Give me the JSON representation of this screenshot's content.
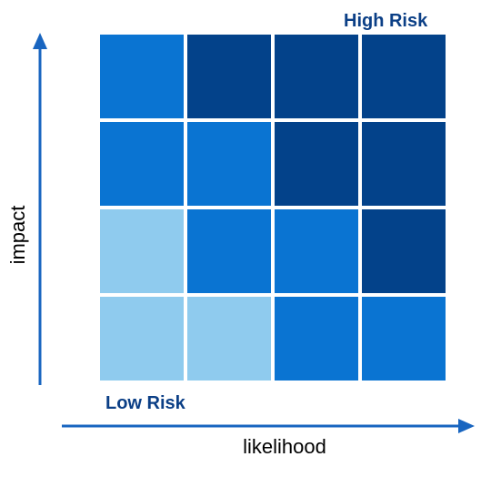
{
  "labels": {
    "high_risk": "High Risk",
    "low_risk": "Low Risk",
    "x_axis": "likelihood",
    "y_axis": "impact"
  },
  "colors": {
    "level_1": "#8fcbee",
    "level_2": "#0a74d2",
    "level_3": "#03428a",
    "axis": "#1865c0",
    "label_text": "#0b3f86"
  },
  "grid": {
    "rows": 4,
    "cols": 4,
    "row_order": "top-to-bottom (high impact first)",
    "col_order": "left-to-right (low likelihood first)",
    "levels": [
      [
        2,
        3,
        3,
        3
      ],
      [
        2,
        2,
        3,
        3
      ],
      [
        1,
        2,
        2,
        3
      ],
      [
        1,
        1,
        2,
        2
      ]
    ]
  }
}
